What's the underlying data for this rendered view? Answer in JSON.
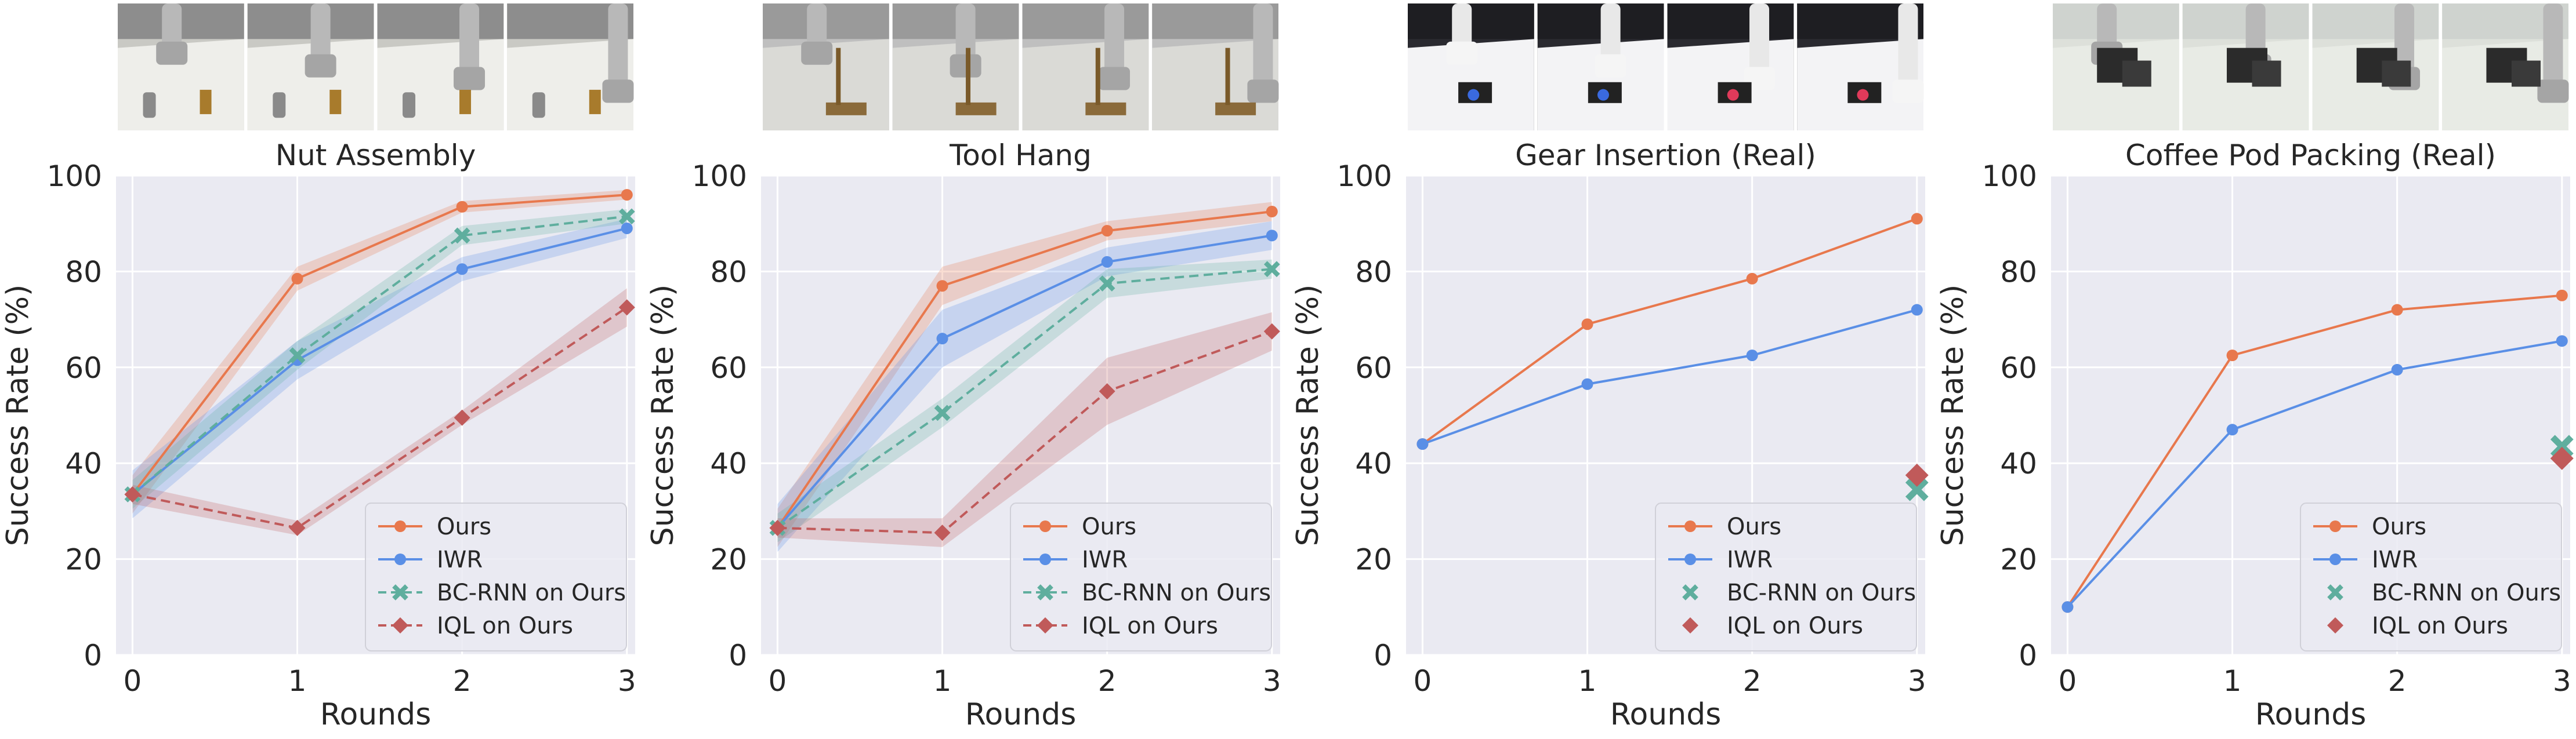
{
  "colors": {
    "plot_bg": "#eaeaf2",
    "grid": "#ffffff",
    "ours": "#e8784d",
    "iwr": "#5a8fe6",
    "bcrnn": "#5fae9e",
    "iql": "#c05a5a"
  },
  "legend_labels": [
    "Ours",
    "IWR",
    "BC-RNN on Ours",
    "IQL on Ours"
  ],
  "chart_data": [
    {
      "type": "line",
      "title": "Nut Assembly",
      "xlabel": "Rounds",
      "ylabel": "Success Rate (%)",
      "x": [
        0,
        1,
        2,
        3
      ],
      "xlim": [
        -0.1,
        3.05
      ],
      "ylim": [
        0,
        100
      ],
      "yticks": [
        0,
        20,
        40,
        60,
        80,
        100
      ],
      "grid": true,
      "legend_position": "bottom-right",
      "thumbnail_style": "sim-white",
      "series": [
        {
          "name": "Ours",
          "color_key": "ours",
          "marker": "circle",
          "dashed": false,
          "values": [
            33.5,
            78.5,
            93.5,
            96.0
          ],
          "band": [
            4,
            2.5,
            1.2,
            1.0
          ]
        },
        {
          "name": "IWR",
          "color_key": "iwr",
          "marker": "circle",
          "dashed": false,
          "values": [
            33.5,
            61.5,
            80.5,
            89.0
          ],
          "band": [
            5,
            4,
            2.5,
            2.0
          ]
        },
        {
          "name": "BC-RNN on Ours",
          "color_key": "bcrnn",
          "marker": "x",
          "dashed": true,
          "values": [
            33.5,
            62.5,
            87.5,
            91.5
          ],
          "band": [
            3,
            3,
            2,
            1.5
          ]
        },
        {
          "name": "IQL on Ours",
          "color_key": "iql",
          "marker": "diamond",
          "dashed": true,
          "values": [
            33.5,
            26.5,
            49.5,
            72.5
          ],
          "band": [
            2,
            1.5,
            1.5,
            4
          ]
        }
      ]
    },
    {
      "type": "line",
      "title": "Tool Hang",
      "xlabel": "Rounds",
      "ylabel": "Success Rate (%)",
      "x": [
        0,
        1,
        2,
        3
      ],
      "xlim": [
        -0.1,
        3.05
      ],
      "ylim": [
        0,
        100
      ],
      "yticks": [
        0,
        20,
        40,
        60,
        80,
        100
      ],
      "grid": true,
      "legend_position": "bottom-right",
      "thumbnail_style": "sim-gray",
      "series": [
        {
          "name": "Ours",
          "color_key": "ours",
          "marker": "circle",
          "dashed": false,
          "values": [
            26.5,
            77.0,
            88.5,
            92.5
          ],
          "band": [
            4,
            4,
            2,
            2
          ]
        },
        {
          "name": "IWR",
          "color_key": "iwr",
          "marker": "circle",
          "dashed": false,
          "values": [
            26.5,
            66.0,
            82.0,
            87.5
          ],
          "band": [
            5,
            6,
            3,
            3
          ]
        },
        {
          "name": "BC-RNN on Ours",
          "color_key": "bcrnn",
          "marker": "x",
          "dashed": true,
          "values": [
            26.5,
            50.5,
            77.5,
            80.5
          ],
          "band": [
            3,
            3,
            3,
            2
          ]
        },
        {
          "name": "IQL on Ours",
          "color_key": "iql",
          "marker": "diamond",
          "dashed": true,
          "values": [
            26.5,
            25.5,
            55.0,
            67.5
          ],
          "band": [
            2,
            3,
            7,
            4
          ]
        }
      ]
    },
    {
      "type": "line",
      "title": "Gear Insertion (Real)",
      "xlabel": "Rounds",
      "ylabel": "Success Rate (%)",
      "x": [
        0,
        1,
        2,
        3
      ],
      "xlim": [
        -0.1,
        3.05
      ],
      "ylim": [
        0,
        100
      ],
      "yticks": [
        0,
        20,
        40,
        60,
        80,
        100
      ],
      "grid": true,
      "legend_position": "bottom-right",
      "thumbnail_style": "real-dark",
      "series": [
        {
          "name": "Ours",
          "color_key": "ours",
          "marker": "circle",
          "dashed": false,
          "values": [
            44.0,
            69.0,
            78.5,
            91.0
          ]
        },
        {
          "name": "IWR",
          "color_key": "iwr",
          "marker": "circle",
          "dashed": false,
          "values": [
            44.0,
            56.5,
            62.5,
            72.0
          ]
        },
        {
          "name": "BC-RNN on Ours",
          "color_key": "bcrnn",
          "marker": "x",
          "points_only": true,
          "x": [
            3
          ],
          "values": [
            34.5
          ]
        },
        {
          "name": "IQL on Ours",
          "color_key": "iql",
          "marker": "diamond",
          "points_only": true,
          "x": [
            3
          ],
          "values": [
            37.5
          ]
        }
      ]
    },
    {
      "type": "line",
      "title": "Coffee Pod Packing (Real)",
      "xlabel": "Rounds",
      "ylabel": "Success Rate (%)",
      "x": [
        0,
        1,
        2,
        3
      ],
      "xlim": [
        -0.1,
        3.05
      ],
      "ylim": [
        0,
        100
      ],
      "yticks": [
        0,
        20,
        40,
        60,
        80,
        100
      ],
      "grid": true,
      "legend_position": "bottom-right",
      "thumbnail_style": "real-light",
      "series": [
        {
          "name": "Ours",
          "color_key": "ours",
          "marker": "circle",
          "dashed": false,
          "values": [
            10.0,
            62.5,
            72.0,
            75.0
          ]
        },
        {
          "name": "IWR",
          "color_key": "iwr",
          "marker": "circle",
          "dashed": false,
          "values": [
            10.0,
            47.0,
            59.5,
            65.5
          ]
        },
        {
          "name": "BC-RNN on Ours",
          "color_key": "bcrnn",
          "marker": "x",
          "points_only": true,
          "x": [
            3
          ],
          "values": [
            43.5
          ]
        },
        {
          "name": "IQL on Ours",
          "color_key": "iql",
          "marker": "diamond",
          "points_only": true,
          "x": [
            3
          ],
          "values": [
            41.0
          ]
        }
      ]
    }
  ]
}
